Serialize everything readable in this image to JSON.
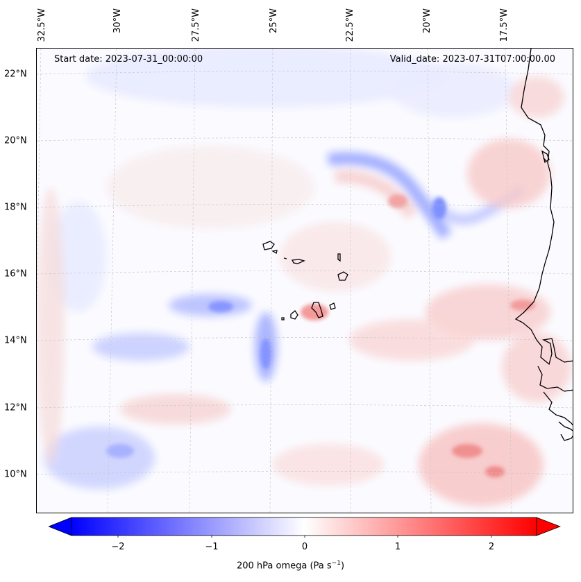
{
  "map": {
    "lon_labels": [
      "32.5°W",
      "30°W",
      "27.5°W",
      "25°W",
      "22.5°W",
      "20°W",
      "17.5°W"
    ],
    "lat_labels": [
      "22°N",
      "20°N",
      "18°N",
      "16°N",
      "14°N",
      "12°N",
      "10°N"
    ],
    "start_date": "Start date: 2023-07-31_00:00:00",
    "valid_date": "Valid_date: 2023-07-31T07:00:00.00",
    "extent": {
      "lon": [
        -32.6,
        -16.2
      ],
      "lat": [
        8.9,
        22.7
      ]
    },
    "coastline_color": "#000000",
    "gridline_color": "#c8c8c8"
  },
  "colorbar": {
    "colormap": "bwr",
    "range": [
      -2.5,
      2.5
    ],
    "extend": "both",
    "ticks": [
      "−2",
      "−1",
      "0",
      "1",
      "2"
    ],
    "tick_values": [
      -2,
      -1,
      0,
      1,
      2
    ],
    "label_text": "200 hPa omega (Pa s",
    "label_sup": "−1",
    "label_close": ")",
    "colors": {
      "negative": "#0000ff",
      "zero": "#ffffff",
      "positive": "#ff0000"
    }
  }
}
